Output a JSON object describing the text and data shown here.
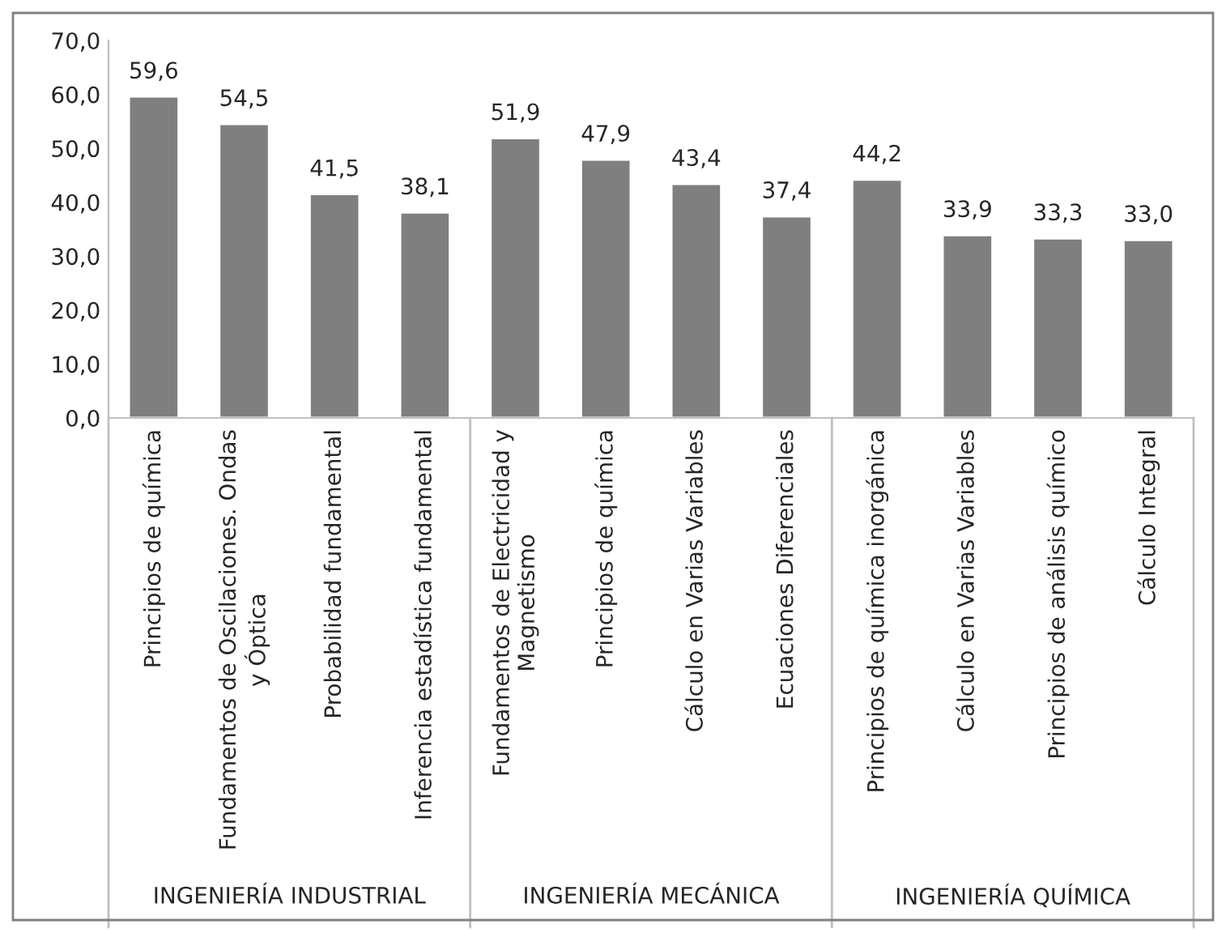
{
  "chart_data": {
    "type": "bar",
    "categories": [
      "Principios de química",
      "Fundamentos de Oscilaciones. Ondas\ny Óptica",
      "Probabilidad fundamental",
      "Inferencia estadística fundamental",
      "Fundamentos de Electricidad y\nMagnetismo",
      "Principios de química",
      "Cálculo en Varias Variables",
      "Ecuaciones Diferenciales",
      "Principios de química inorgánica",
      "Cálculo en Varias Variables",
      "Principios de análisis químico",
      "Cálculo Integral"
    ],
    "values": [
      59.6,
      54.5,
      41.5,
      38.1,
      51.9,
      47.9,
      43.4,
      37.4,
      44.2,
      33.9,
      33.3,
      33.0
    ],
    "value_labels": [
      "59,6",
      "54,5",
      "41,5",
      "38,1",
      "51,9",
      "47,9",
      "43,4",
      "37,4",
      "44,2",
      "33,9",
      "33,3",
      "33,0"
    ],
    "color": "#7f7f7f",
    "ylim": [
      0,
      70
    ],
    "yticks": [
      {
        "value": 0,
        "label": "0,0"
      },
      {
        "value": 10,
        "label": "10,0"
      },
      {
        "value": 20,
        "label": "20,0"
      },
      {
        "value": 30,
        "label": "30,0"
      },
      {
        "value": 40,
        "label": "40,0"
      },
      {
        "value": 50,
        "label": "50,0"
      },
      {
        "value": 60,
        "label": "60,0"
      },
      {
        "value": 70,
        "label": "70,0"
      }
    ],
    "annotations": [
      "INGENIERÍA INDUSTRIAL",
      "INGENIERÍA MECÁNICA",
      "INGENIERÍA QUÍMICA"
    ],
    "grid": false,
    "legend": false
  }
}
